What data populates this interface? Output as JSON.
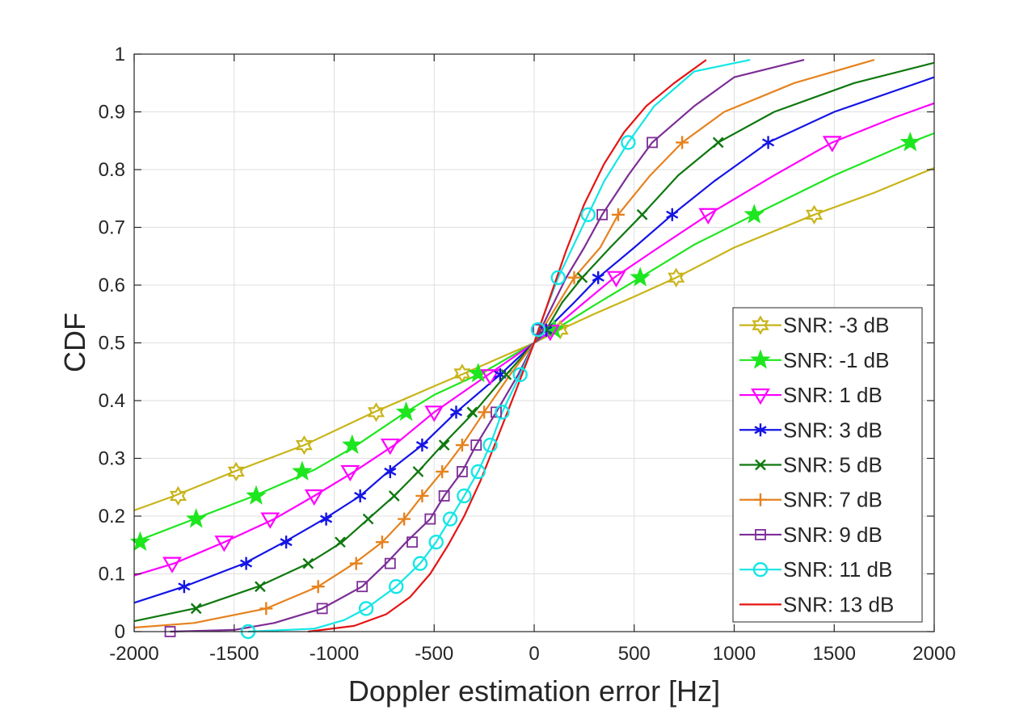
{
  "chart_data": {
    "type": "line",
    "title": "",
    "xlabel": "Doppler estimation error [Hz]",
    "ylabel": "CDF",
    "xlim": [
      -2000,
      2000
    ],
    "ylim": [
      0,
      1
    ],
    "xticks": [
      -2000,
      -1500,
      -1000,
      -500,
      0,
      500,
      1000,
      1500,
      2000
    ],
    "yticks": [
      0,
      0.1,
      0.2,
      0.3,
      0.4,
      0.5,
      0.6,
      0.7,
      0.8,
      0.9,
      1
    ],
    "xtick_labels": [
      "-2000",
      "-1500",
      "-1000",
      "-500",
      "0",
      "500",
      "1000",
      "1500",
      "2000"
    ],
    "ytick_labels": [
      "0",
      "0.1",
      "0.2",
      "0.3",
      "0.4",
      "0.5",
      "0.6",
      "0.7",
      "0.8",
      "0.9",
      "1"
    ],
    "grid": true,
    "legend_position": "bottom-right",
    "series": [
      {
        "name": "SNR: -3 dB",
        "color": "#c8b418",
        "marker": "hexagram",
        "points": [
          [
            -2000,
            0.21
          ],
          [
            -1800,
            0.235
          ],
          [
            -1500,
            0.277
          ],
          [
            -1150,
            0.323
          ],
          [
            -800,
            0.38
          ],
          [
            -500,
            0.425
          ],
          [
            -350,
            0.447
          ],
          [
            -200,
            0.47
          ],
          [
            0,
            0.5
          ],
          [
            130,
            0.523
          ],
          [
            300,
            0.55
          ],
          [
            500,
            0.58
          ],
          [
            710,
            0.613
          ],
          [
            1000,
            0.665
          ],
          [
            1400,
            0.722
          ],
          [
            1700,
            0.76
          ],
          [
            2000,
            0.803
          ]
        ],
        "markers": [
          [
            -1780,
            0.235
          ],
          [
            -1490,
            0.277
          ],
          [
            -1150,
            0.323
          ],
          [
            -790,
            0.38
          ],
          [
            -360,
            0.447
          ],
          [
            130,
            0.523
          ],
          [
            710,
            0.613
          ],
          [
            1400,
            0.722
          ]
        ]
      },
      {
        "name": "SNR: -1 dB",
        "color": "#1ee61e",
        "marker": "pentagram",
        "points": [
          [
            -2000,
            0.155
          ],
          [
            -1700,
            0.195
          ],
          [
            -1400,
            0.235
          ],
          [
            -1100,
            0.28
          ],
          [
            -900,
            0.32
          ],
          [
            -650,
            0.378
          ],
          [
            -500,
            0.41
          ],
          [
            -250,
            0.45
          ],
          [
            0,
            0.5
          ],
          [
            100,
            0.522
          ],
          [
            300,
            0.565
          ],
          [
            530,
            0.613
          ],
          [
            800,
            0.67
          ],
          [
            1100,
            0.722
          ],
          [
            1500,
            0.79
          ],
          [
            1880,
            0.847
          ],
          [
            2000,
            0.863
          ]
        ],
        "markers": [
          [
            -1970,
            0.155
          ],
          [
            -1690,
            0.195
          ],
          [
            -1390,
            0.235
          ],
          [
            -1160,
            0.277
          ],
          [
            -910,
            0.323
          ],
          [
            -640,
            0.38
          ],
          [
            -280,
            0.447
          ],
          [
            100,
            0.523
          ],
          [
            530,
            0.613
          ],
          [
            1100,
            0.722
          ],
          [
            1880,
            0.847
          ]
        ]
      },
      {
        "name": "SNR: 1 dB",
        "color": "#ff00ff",
        "marker": "triangle-down",
        "points": [
          [
            -2000,
            0.097
          ],
          [
            -1800,
            0.118
          ],
          [
            -1550,
            0.155
          ],
          [
            -1300,
            0.195
          ],
          [
            -1100,
            0.235
          ],
          [
            -900,
            0.277
          ],
          [
            -700,
            0.323
          ],
          [
            -500,
            0.38
          ],
          [
            -250,
            0.44
          ],
          [
            0,
            0.5
          ],
          [
            80,
            0.52
          ],
          [
            250,
            0.57
          ],
          [
            400,
            0.613
          ],
          [
            600,
            0.66
          ],
          [
            870,
            0.722
          ],
          [
            1200,
            0.79
          ],
          [
            1490,
            0.847
          ],
          [
            1800,
            0.89
          ],
          [
            2000,
            0.915
          ]
        ],
        "markers": [
          [
            -1810,
            0.118
          ],
          [
            -1550,
            0.155
          ],
          [
            -1320,
            0.195
          ],
          [
            -1100,
            0.235
          ],
          [
            -920,
            0.277
          ],
          [
            -720,
            0.323
          ],
          [
            -500,
            0.38
          ],
          [
            -220,
            0.443
          ],
          [
            80,
            0.52
          ],
          [
            410,
            0.613
          ],
          [
            870,
            0.722
          ],
          [
            1490,
            0.847
          ]
        ]
      },
      {
        "name": "SNR: 3 dB",
        "color": "#1414e6",
        "marker": "asterisk",
        "points": [
          [
            -2000,
            0.05
          ],
          [
            -1750,
            0.078
          ],
          [
            -1450,
            0.118
          ],
          [
            -1250,
            0.155
          ],
          [
            -1050,
            0.195
          ],
          [
            -870,
            0.235
          ],
          [
            -730,
            0.277
          ],
          [
            -560,
            0.323
          ],
          [
            -390,
            0.38
          ],
          [
            -170,
            0.445
          ],
          [
            0,
            0.5
          ],
          [
            60,
            0.522
          ],
          [
            200,
            0.57
          ],
          [
            320,
            0.613
          ],
          [
            500,
            0.665
          ],
          [
            690,
            0.722
          ],
          [
            900,
            0.78
          ],
          [
            1170,
            0.847
          ],
          [
            1500,
            0.9
          ],
          [
            2000,
            0.96
          ]
        ],
        "markers": [
          [
            -1750,
            0.078
          ],
          [
            -1440,
            0.118
          ],
          [
            -1240,
            0.155
          ],
          [
            -1040,
            0.195
          ],
          [
            -870,
            0.235
          ],
          [
            -720,
            0.277
          ],
          [
            -560,
            0.323
          ],
          [
            -390,
            0.38
          ],
          [
            -170,
            0.445
          ],
          [
            60,
            0.522
          ],
          [
            320,
            0.613
          ],
          [
            690,
            0.722
          ],
          [
            1170,
            0.847
          ]
        ]
      },
      {
        "name": "SNR: 5 dB",
        "color": "#0f780f",
        "marker": "x",
        "points": [
          [
            -2000,
            0.018
          ],
          [
            -1700,
            0.04
          ],
          [
            -1380,
            0.078
          ],
          [
            -1130,
            0.118
          ],
          [
            -960,
            0.155
          ],
          [
            -830,
            0.195
          ],
          [
            -700,
            0.235
          ],
          [
            -580,
            0.277
          ],
          [
            -460,
            0.323
          ],
          [
            -300,
            0.38
          ],
          [
            -140,
            0.445
          ],
          [
            0,
            0.5
          ],
          [
            60,
            0.523
          ],
          [
            140,
            0.57
          ],
          [
            240,
            0.613
          ],
          [
            380,
            0.665
          ],
          [
            540,
            0.722
          ],
          [
            720,
            0.79
          ],
          [
            920,
            0.847
          ],
          [
            1200,
            0.9
          ],
          [
            1600,
            0.95
          ],
          [
            2000,
            0.985
          ]
        ],
        "markers": [
          [
            -1690,
            0.04
          ],
          [
            -1370,
            0.078
          ],
          [
            -1130,
            0.118
          ],
          [
            -970,
            0.155
          ],
          [
            -830,
            0.195
          ],
          [
            -700,
            0.235
          ],
          [
            -580,
            0.277
          ],
          [
            -450,
            0.323
          ],
          [
            -310,
            0.38
          ],
          [
            -140,
            0.445
          ],
          [
            60,
            0.523
          ],
          [
            240,
            0.613
          ],
          [
            540,
            0.722
          ],
          [
            920,
            0.847
          ]
        ]
      },
      {
        "name": "SNR: 7 dB",
        "color": "#e6821e",
        "marker": "plus",
        "points": [
          [
            -2000,
            0.007
          ],
          [
            -1700,
            0.015
          ],
          [
            -1340,
            0.04
          ],
          [
            -1080,
            0.078
          ],
          [
            -900,
            0.118
          ],
          [
            -760,
            0.155
          ],
          [
            -650,
            0.195
          ],
          [
            -560,
            0.235
          ],
          [
            -460,
            0.277
          ],
          [
            -360,
            0.323
          ],
          [
            -250,
            0.38
          ],
          [
            -120,
            0.445
          ],
          [
            0,
            0.5
          ],
          [
            200,
            0.613
          ],
          [
            330,
            0.665
          ],
          [
            420,
            0.722
          ],
          [
            580,
            0.79
          ],
          [
            740,
            0.847
          ],
          [
            950,
            0.9
          ],
          [
            1300,
            0.95
          ],
          [
            1700,
            0.99
          ]
        ],
        "markers": [
          [
            -1340,
            0.04
          ],
          [
            -1080,
            0.078
          ],
          [
            -890,
            0.118
          ],
          [
            -760,
            0.155
          ],
          [
            -650,
            0.195
          ],
          [
            -560,
            0.235
          ],
          [
            -460,
            0.277
          ],
          [
            -360,
            0.323
          ],
          [
            -250,
            0.38
          ],
          [
            200,
            0.613
          ],
          [
            420,
            0.722
          ],
          [
            740,
            0.847
          ]
        ]
      },
      {
        "name": "SNR: 9 dB",
        "color": "#7d2d96",
        "marker": "square",
        "points": [
          [
            -1820,
            0.0
          ],
          [
            -1500,
            0.003
          ],
          [
            -1300,
            0.015
          ],
          [
            -1060,
            0.04
          ],
          [
            -860,
            0.078
          ],
          [
            -740,
            0.118
          ],
          [
            -640,
            0.155
          ],
          [
            -520,
            0.195
          ],
          [
            -450,
            0.235
          ],
          [
            -360,
            0.277
          ],
          [
            -290,
            0.323
          ],
          [
            -190,
            0.38
          ],
          [
            -80,
            0.445
          ],
          [
            0,
            0.5
          ],
          [
            160,
            0.613
          ],
          [
            250,
            0.665
          ],
          [
            340,
            0.722
          ],
          [
            470,
            0.79
          ],
          [
            590,
            0.847
          ],
          [
            800,
            0.91
          ],
          [
            1000,
            0.96
          ],
          [
            1350,
            0.99
          ]
        ],
        "markers": [
          [
            -1820,
            0.0
          ],
          [
            -1060,
            0.04
          ],
          [
            -860,
            0.078
          ],
          [
            -720,
            0.118
          ],
          [
            -610,
            0.155
          ],
          [
            -520,
            0.195
          ],
          [
            -450,
            0.235
          ],
          [
            -360,
            0.277
          ],
          [
            -290,
            0.323
          ],
          [
            -190,
            0.38
          ],
          [
            20,
            0.523
          ],
          [
            340,
            0.722
          ],
          [
            590,
            0.847
          ]
        ]
      },
      {
        "name": "SNR: 11 dB",
        "color": "#14e6e6",
        "marker": "circle",
        "points": [
          [
            -1430,
            0.0
          ],
          [
            -1100,
            0.005
          ],
          [
            -950,
            0.02
          ],
          [
            -840,
            0.04
          ],
          [
            -690,
            0.078
          ],
          [
            -570,
            0.118
          ],
          [
            -490,
            0.155
          ],
          [
            -420,
            0.195
          ],
          [
            -350,
            0.235
          ],
          [
            -280,
            0.277
          ],
          [
            -220,
            0.323
          ],
          [
            -160,
            0.38
          ],
          [
            -70,
            0.445
          ],
          [
            0,
            0.5
          ],
          [
            20,
            0.523
          ],
          [
            120,
            0.613
          ],
          [
            270,
            0.722
          ],
          [
            350,
            0.78
          ],
          [
            470,
            0.847
          ],
          [
            600,
            0.91
          ],
          [
            800,
            0.97
          ],
          [
            1080,
            0.99
          ]
        ],
        "markers": [
          [
            -1430,
            0.0
          ],
          [
            -840,
            0.04
          ],
          [
            -690,
            0.078
          ],
          [
            -570,
            0.118
          ],
          [
            -490,
            0.155
          ],
          [
            -420,
            0.195
          ],
          [
            -350,
            0.235
          ],
          [
            -280,
            0.277
          ],
          [
            -220,
            0.323
          ],
          [
            -160,
            0.38
          ],
          [
            -70,
            0.445
          ],
          [
            20,
            0.523
          ],
          [
            120,
            0.613
          ],
          [
            270,
            0.722
          ],
          [
            470,
            0.847
          ]
        ]
      },
      {
        "name": "SNR: 13 dB",
        "color": "#e61414",
        "marker": "none",
        "points": [
          [
            -1130,
            0.0
          ],
          [
            -900,
            0.01
          ],
          [
            -740,
            0.03
          ],
          [
            -620,
            0.06
          ],
          [
            -520,
            0.1
          ],
          [
            -430,
            0.15
          ],
          [
            -350,
            0.2
          ],
          [
            -270,
            0.26
          ],
          [
            -190,
            0.33
          ],
          [
            -100,
            0.41
          ],
          [
            0,
            0.5
          ],
          [
            80,
            0.58
          ],
          [
            160,
            0.66
          ],
          [
            250,
            0.74
          ],
          [
            350,
            0.81
          ],
          [
            450,
            0.865
          ],
          [
            560,
            0.91
          ],
          [
            700,
            0.95
          ],
          [
            860,
            0.99
          ]
        ],
        "markers": []
      }
    ]
  }
}
